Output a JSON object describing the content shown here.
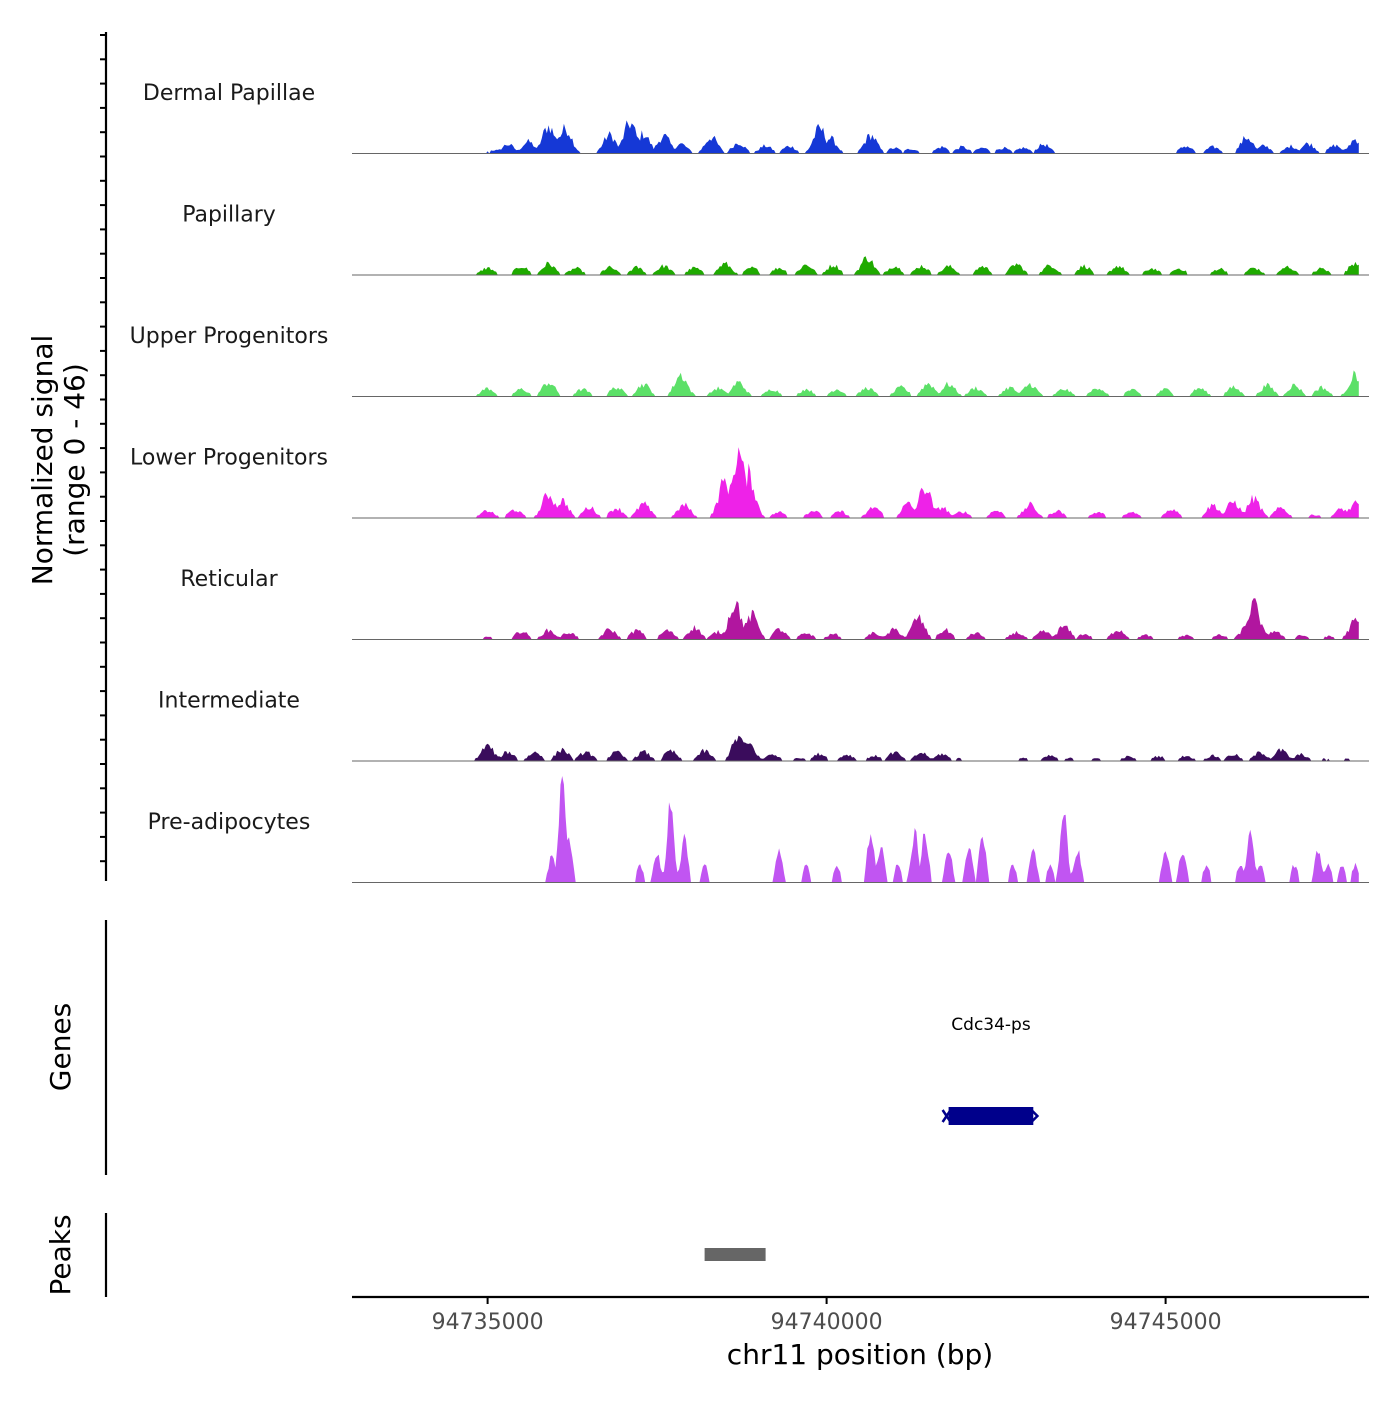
{
  "chart_data": {
    "type": "area",
    "title": "",
    "ylabel_line1": "Normalized signal",
    "ylabel_line2": "(range 0 - 46)",
    "ylim": [
      0,
      46
    ],
    "xlabel": "chr11 position (bp)",
    "xlim": [
      94733000,
      94748000
    ],
    "data_xrange": [
      94734700,
      94747850
    ],
    "x_ticks": [
      94735000,
      94740000,
      94745000
    ],
    "x_tick_labels": [
      "94735000",
      "94740000",
      "94745000"
    ],
    "series": [
      {
        "name": "Dermal Papillae",
        "color": "#1538D6",
        "peaks": [
          [
            94735100,
            1.6
          ],
          [
            94735300,
            4.2
          ],
          [
            94735600,
            5.4
          ],
          [
            94735900,
            12.5
          ],
          [
            94736150,
            11.5
          ],
          [
            94736050,
            8.0
          ],
          [
            94736800,
            8.5
          ],
          [
            94737100,
            14.0
          ],
          [
            94737300,
            9.0
          ],
          [
            94737600,
            8.0
          ],
          [
            94737850,
            4.4
          ],
          [
            94738300,
            7.5
          ],
          [
            94738700,
            5.0
          ],
          [
            94739100,
            3.5
          ],
          [
            94739450,
            3.4
          ],
          [
            94739900,
            11.5
          ],
          [
            94740050,
            7.0
          ],
          [
            94740650,
            8.3
          ],
          [
            94741000,
            2.5
          ],
          [
            94741250,
            2.2
          ],
          [
            94741700,
            3.0
          ],
          [
            94742000,
            3.0
          ],
          [
            94742300,
            2.6
          ],
          [
            94742600,
            2.6
          ],
          [
            94742900,
            2.6
          ],
          [
            94743200,
            4.2
          ],
          [
            94745300,
            3.4
          ],
          [
            94745700,
            3.0
          ],
          [
            94746200,
            7.5
          ],
          [
            94746450,
            3.5
          ],
          [
            94746850,
            3.4
          ],
          [
            94747100,
            4.6
          ],
          [
            94747500,
            3.7
          ],
          [
            94747800,
            6.5
          ]
        ]
      },
      {
        "name": "Papillary",
        "color": "#1FAA00",
        "peaks": [
          [
            94735000,
            3.3
          ],
          [
            94735500,
            4.0
          ],
          [
            94735900,
            5.2
          ],
          [
            94736300,
            3.1
          ],
          [
            94736800,
            3.5
          ],
          [
            94737200,
            3.5
          ],
          [
            94737600,
            4.2
          ],
          [
            94738050,
            3.3
          ],
          [
            94738500,
            5.2
          ],
          [
            94738900,
            3.3
          ],
          [
            94739300,
            3.3
          ],
          [
            94739700,
            4.8
          ],
          [
            94740100,
            4.6
          ],
          [
            94740600,
            8.0
          ],
          [
            94741000,
            4.2
          ],
          [
            94741400,
            4.2
          ],
          [
            94741800,
            4.0
          ],
          [
            94742300,
            4.0
          ],
          [
            94742800,
            5.0
          ],
          [
            94743300,
            4.6
          ],
          [
            94743800,
            4.2
          ],
          [
            94744300,
            4.2
          ],
          [
            94744800,
            3.0
          ],
          [
            94745200,
            3.0
          ],
          [
            94745800,
            3.0
          ],
          [
            94746300,
            3.3
          ],
          [
            94746800,
            3.8
          ],
          [
            94747300,
            3.0
          ],
          [
            94747800,
            6.0
          ]
        ]
      },
      {
        "name": "Upper Progenitors",
        "color": "#5CE068",
        "peaks": [
          [
            94735000,
            3.8
          ],
          [
            94735500,
            3.4
          ],
          [
            94735900,
            6.5
          ],
          [
            94736400,
            3.3
          ],
          [
            94736900,
            4.2
          ],
          [
            94737300,
            5.7
          ],
          [
            94737850,
            10.0
          ],
          [
            94738400,
            3.8
          ],
          [
            94738700,
            6.5
          ],
          [
            94739200,
            3.4
          ],
          [
            94739700,
            3.4
          ],
          [
            94740150,
            3.4
          ],
          [
            94740600,
            4.0
          ],
          [
            94741100,
            4.2
          ],
          [
            94741500,
            6.0
          ],
          [
            94741800,
            5.7
          ],
          [
            94742200,
            4.0
          ],
          [
            94742700,
            4.2
          ],
          [
            94743000,
            5.7
          ],
          [
            94743500,
            3.4
          ],
          [
            94744000,
            4.2
          ],
          [
            94744500,
            3.0
          ],
          [
            94745000,
            3.3
          ],
          [
            94745500,
            3.8
          ],
          [
            94746000,
            4.2
          ],
          [
            94746500,
            5.0
          ],
          [
            94746900,
            5.2
          ],
          [
            94747300,
            4.2
          ],
          [
            94747800,
            10.0
          ]
        ]
      },
      {
        "name": "Lower Progenitors",
        "color": "#EE22E8",
        "peaks": [
          [
            94735000,
            3.4
          ],
          [
            94735400,
            3.8
          ],
          [
            94735900,
            11.0
          ],
          [
            94736100,
            8.0
          ],
          [
            94736500,
            5.0
          ],
          [
            94736900,
            4.6
          ],
          [
            94737300,
            6.5
          ],
          [
            94737900,
            6.0
          ],
          [
            94738500,
            17.0
          ],
          [
            94738700,
            30.0
          ],
          [
            94738850,
            20.0
          ],
          [
            94739300,
            2.7
          ],
          [
            94739800,
            3.4
          ],
          [
            94740200,
            3.0
          ],
          [
            94740700,
            5.0
          ],
          [
            94741200,
            6.5
          ],
          [
            94741450,
            14.0
          ],
          [
            94741700,
            5.0
          ],
          [
            94742000,
            3.0
          ],
          [
            94742500,
            3.4
          ],
          [
            94743000,
            6.0
          ],
          [
            94743400,
            3.4
          ],
          [
            94744000,
            2.7
          ],
          [
            94744500,
            2.6
          ],
          [
            94745100,
            4.2
          ],
          [
            94745700,
            6.0
          ],
          [
            94746000,
            7.5
          ],
          [
            94746300,
            9.0
          ],
          [
            94746700,
            4.6
          ],
          [
            94747200,
            1.5
          ],
          [
            94747600,
            4.2
          ],
          [
            94747800,
            6.5
          ]
        ]
      },
      {
        "name": "Reticular",
        "color": "#B1169F",
        "peaks": [
          [
            94735000,
            1.1
          ],
          [
            94735500,
            3.8
          ],
          [
            94735900,
            4.2
          ],
          [
            94736200,
            3.3
          ],
          [
            94736800,
            4.6
          ],
          [
            94737200,
            4.2
          ],
          [
            94737650,
            4.2
          ],
          [
            94738050,
            5.5
          ],
          [
            94738400,
            3.5
          ],
          [
            94738650,
            17.0
          ],
          [
            94738900,
            11.0
          ],
          [
            94739300,
            4.6
          ],
          [
            94739700,
            3.0
          ],
          [
            94740100,
            2.5
          ],
          [
            94740700,
            3.0
          ],
          [
            94741000,
            4.6
          ],
          [
            94741350,
            10.0
          ],
          [
            94741750,
            4.4
          ],
          [
            94742200,
            3.0
          ],
          [
            94742800,
            3.3
          ],
          [
            94743200,
            3.8
          ],
          [
            94743500,
            6.0
          ],
          [
            94743800,
            2.5
          ],
          [
            94744300,
            4.6
          ],
          [
            94744700,
            2.0
          ],
          [
            94745300,
            1.9
          ],
          [
            94745800,
            2.0
          ],
          [
            94746200,
            6.0
          ],
          [
            94746300,
            16.0
          ],
          [
            94746600,
            4.0
          ],
          [
            94747000,
            2.0
          ],
          [
            94747400,
            1.5
          ],
          [
            94747800,
            8.5
          ]
        ]
      },
      {
        "name": "Intermediate",
        "color": "#3A0C5C",
        "peaks": [
          [
            94735000,
            7.0
          ],
          [
            94735300,
            4.2
          ],
          [
            94735700,
            4.0
          ],
          [
            94736100,
            5.4
          ],
          [
            94736450,
            4.2
          ],
          [
            94736900,
            4.0
          ],
          [
            94737300,
            4.2
          ],
          [
            94737700,
            4.6
          ],
          [
            94738200,
            4.6
          ],
          [
            94738700,
            11.0
          ],
          [
            94738850,
            8.0
          ],
          [
            94739200,
            3.2
          ],
          [
            94739600,
            1.6
          ],
          [
            94739900,
            3.3
          ],
          [
            94740300,
            3.0
          ],
          [
            94740700,
            2.4
          ],
          [
            94741000,
            4.0
          ],
          [
            94741400,
            3.8
          ],
          [
            94741700,
            3.3
          ],
          [
            94741950,
            1.3
          ],
          [
            94742900,
            1.3
          ],
          [
            94743300,
            2.4
          ],
          [
            94743600,
            1.3
          ],
          [
            94744000,
            1.2
          ],
          [
            94744450,
            2.0
          ],
          [
            94744900,
            2.2
          ],
          [
            94745300,
            2.4
          ],
          [
            94745700,
            2.4
          ],
          [
            94746000,
            3.0
          ],
          [
            94746400,
            4.0
          ],
          [
            94746700,
            5.0
          ],
          [
            94747000,
            3.0
          ],
          [
            94747350,
            1.1
          ],
          [
            94747650,
            1.1
          ]
        ]
      },
      {
        "name": "Pre-adipocytes",
        "color": "#C155F2",
        "peaks": [
          [
            94735950,
            12.0
          ],
          [
            94736100,
            46.0
          ],
          [
            94736200,
            20.0
          ],
          [
            94737250,
            8.0
          ],
          [
            94737500,
            13.0
          ],
          [
            94737700,
            38.0
          ],
          [
            94737900,
            20.0
          ],
          [
            94738200,
            8.0
          ],
          [
            94739300,
            15.0
          ],
          [
            94739700,
            8.0
          ],
          [
            94740150,
            8.0
          ],
          [
            94740650,
            23.0
          ],
          [
            94740800,
            16.0
          ],
          [
            94741050,
            8.0
          ],
          [
            94741300,
            23.0
          ],
          [
            94741450,
            23.0
          ],
          [
            94741800,
            15.0
          ],
          [
            94742100,
            15.0
          ],
          [
            94742300,
            23.0
          ],
          [
            94742750,
            8.0
          ],
          [
            94743050,
            15.0
          ],
          [
            94743300,
            8.0
          ],
          [
            94743500,
            31.0
          ],
          [
            94743700,
            15.0
          ],
          [
            94745000,
            15.0
          ],
          [
            94745250,
            15.0
          ],
          [
            94745600,
            8.0
          ],
          [
            94746100,
            8.0
          ],
          [
            94746250,
            23.0
          ],
          [
            94746400,
            8.0
          ],
          [
            94746900,
            8.0
          ],
          [
            94747250,
            15.0
          ],
          [
            94747400,
            8.0
          ],
          [
            94747600,
            8.0
          ],
          [
            94747800,
            8.0
          ]
        ]
      }
    ],
    "genes": {
      "label": "Genes",
      "items": [
        {
          "name": "Cdc34-ps",
          "start": 94741800,
          "end": 94743050,
          "color": "#00008B"
        }
      ]
    },
    "peaks_track": {
      "label": "Peaks",
      "items": [
        {
          "start": 94738200,
          "end": 94739100,
          "color": "#666666"
        }
      ]
    }
  }
}
